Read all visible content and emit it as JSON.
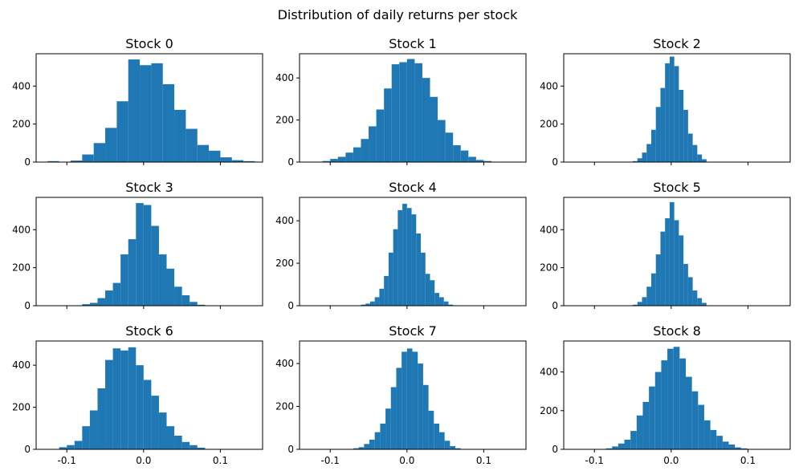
{
  "figure": {
    "title": "Distribution of daily returns per stock",
    "color": "#1f77b4"
  },
  "chart_data": [
    {
      "type": "histogram",
      "title": "Stock 0",
      "xlim": [
        -0.14,
        0.155
      ],
      "ylim": [
        0,
        570
      ],
      "yticks": [
        0,
        200,
        400
      ],
      "xticks": [
        -0.1,
        0.0,
        0.1
      ],
      "show_x_tick_labels": false,
      "bins": [
        [
          -0.125,
          -0.11,
          5
        ],
        [
          -0.11,
          -0.095,
          0
        ],
        [
          -0.095,
          -0.08,
          8
        ],
        [
          -0.08,
          -0.065,
          40
        ],
        [
          -0.065,
          -0.05,
          100
        ],
        [
          -0.05,
          -0.035,
          180
        ],
        [
          -0.035,
          -0.02,
          320
        ],
        [
          -0.02,
          -0.005,
          540
        ],
        [
          -0.005,
          0.01,
          510
        ],
        [
          0.01,
          0.025,
          520
        ],
        [
          0.025,
          0.04,
          410
        ],
        [
          0.04,
          0.055,
          275
        ],
        [
          0.055,
          0.07,
          175
        ],
        [
          0.07,
          0.085,
          90
        ],
        [
          0.085,
          0.1,
          60
        ],
        [
          0.1,
          0.115,
          25
        ],
        [
          0.115,
          0.13,
          10
        ],
        [
          0.13,
          0.145,
          5
        ]
      ]
    },
    {
      "type": "histogram",
      "title": "Stock 1",
      "xlim": [
        -0.14,
        0.155
      ],
      "ylim": [
        0,
        515
      ],
      "yticks": [
        0,
        200,
        400
      ],
      "xticks": [
        -0.1,
        0.0,
        0.1
      ],
      "show_x_tick_labels": false,
      "bins": [
        [
          -0.11,
          -0.1,
          5
        ],
        [
          -0.1,
          -0.09,
          15
        ],
        [
          -0.09,
          -0.08,
          25
        ],
        [
          -0.08,
          -0.07,
          45
        ],
        [
          -0.07,
          -0.06,
          70
        ],
        [
          -0.06,
          -0.05,
          110
        ],
        [
          -0.05,
          -0.04,
          170
        ],
        [
          -0.04,
          -0.03,
          250
        ],
        [
          -0.03,
          -0.02,
          350
        ],
        [
          -0.02,
          -0.01,
          465
        ],
        [
          -0.01,
          0.0,
          475
        ],
        [
          0.0,
          0.01,
          490
        ],
        [
          0.01,
          0.02,
          470
        ],
        [
          0.02,
          0.03,
          400
        ],
        [
          0.03,
          0.04,
          310
        ],
        [
          0.04,
          0.05,
          200
        ],
        [
          0.05,
          0.06,
          140
        ],
        [
          0.06,
          0.07,
          80
        ],
        [
          0.07,
          0.08,
          55
        ],
        [
          0.08,
          0.09,
          25
        ],
        [
          0.09,
          0.1,
          10
        ],
        [
          0.1,
          0.11,
          5
        ]
      ]
    },
    {
      "type": "histogram",
      "title": "Stock 2",
      "xlim": [
        -0.14,
        0.155
      ],
      "ylim": [
        0,
        570
      ],
      "yticks": [
        0,
        200,
        400
      ],
      "xticks": [
        -0.1,
        0.0,
        0.1
      ],
      "show_x_tick_labels": false,
      "bins": [
        [
          -0.05,
          -0.044,
          5
        ],
        [
          -0.044,
          -0.038,
          20
        ],
        [
          -0.038,
          -0.032,
          50
        ],
        [
          -0.032,
          -0.026,
          95
        ],
        [
          -0.026,
          -0.02,
          170
        ],
        [
          -0.02,
          -0.014,
          290
        ],
        [
          -0.014,
          -0.008,
          390
        ],
        [
          -0.008,
          -0.002,
          520
        ],
        [
          -0.002,
          0.004,
          555
        ],
        [
          0.004,
          0.01,
          505
        ],
        [
          0.01,
          0.016,
          380
        ],
        [
          0.016,
          0.022,
          275
        ],
        [
          0.022,
          0.028,
          150
        ],
        [
          0.028,
          0.034,
          90
        ],
        [
          0.034,
          0.04,
          40
        ],
        [
          0.04,
          0.046,
          15
        ]
      ]
    },
    {
      "type": "histogram",
      "title": "Stock 3",
      "xlim": [
        -0.14,
        0.155
      ],
      "ylim": [
        0,
        570
      ],
      "yticks": [
        0,
        200,
        400
      ],
      "xticks": [
        -0.1,
        0.0,
        0.1
      ],
      "show_x_tick_labels": false,
      "bins": [
        [
          -0.08,
          -0.07,
          8
        ],
        [
          -0.07,
          -0.06,
          15
        ],
        [
          -0.06,
          -0.05,
          40
        ],
        [
          -0.05,
          -0.04,
          80
        ],
        [
          -0.04,
          -0.03,
          120
        ],
        [
          -0.03,
          -0.02,
          270
        ],
        [
          -0.02,
          -0.01,
          350
        ],
        [
          -0.01,
          0.0,
          540
        ],
        [
          0.0,
          0.01,
          530
        ],
        [
          0.01,
          0.02,
          420
        ],
        [
          0.02,
          0.03,
          270
        ],
        [
          0.03,
          0.04,
          195
        ],
        [
          0.04,
          0.05,
          100
        ],
        [
          0.05,
          0.06,
          55
        ],
        [
          0.06,
          0.07,
          20
        ],
        [
          0.07,
          0.08,
          5
        ]
      ]
    },
    {
      "type": "histogram",
      "title": "Stock 4",
      "xlim": [
        -0.14,
        0.155
      ],
      "ylim": [
        0,
        510
      ],
      "yticks": [
        0,
        200,
        400
      ],
      "xticks": [
        -0.1,
        0.0,
        0.1
      ],
      "show_x_tick_labels": false,
      "bins": [
        [
          -0.06,
          -0.054,
          5
        ],
        [
          -0.054,
          -0.048,
          10
        ],
        [
          -0.048,
          -0.042,
          20
        ],
        [
          -0.042,
          -0.036,
          40
        ],
        [
          -0.036,
          -0.03,
          80
        ],
        [
          -0.03,
          -0.024,
          140
        ],
        [
          -0.024,
          -0.018,
          250
        ],
        [
          -0.018,
          -0.012,
          360
        ],
        [
          -0.012,
          -0.006,
          450
        ],
        [
          -0.006,
          0.0,
          480
        ],
        [
          0.0,
          0.006,
          460
        ],
        [
          0.006,
          0.012,
          430
        ],
        [
          0.012,
          0.018,
          340
        ],
        [
          0.018,
          0.024,
          250
        ],
        [
          0.024,
          0.03,
          150
        ],
        [
          0.03,
          0.036,
          120
        ],
        [
          0.036,
          0.042,
          60
        ],
        [
          0.042,
          0.048,
          40
        ],
        [
          0.048,
          0.054,
          20
        ],
        [
          0.054,
          0.06,
          5
        ]
      ]
    },
    {
      "type": "histogram",
      "title": "Stock 5",
      "xlim": [
        -0.14,
        0.155
      ],
      "ylim": [
        0,
        570
      ],
      "yticks": [
        0,
        200,
        400
      ],
      "xticks": [
        -0.1,
        0.0,
        0.1
      ],
      "show_x_tick_labels": false,
      "bins": [
        [
          -0.05,
          -0.044,
          5
        ],
        [
          -0.044,
          -0.038,
          20
        ],
        [
          -0.038,
          -0.032,
          45
        ],
        [
          -0.032,
          -0.026,
          100
        ],
        [
          -0.026,
          -0.02,
          170
        ],
        [
          -0.02,
          -0.014,
          270
        ],
        [
          -0.014,
          -0.008,
          390
        ],
        [
          -0.008,
          -0.002,
          460
        ],
        [
          -0.002,
          0.004,
          545
        ],
        [
          0.004,
          0.01,
          450
        ],
        [
          0.01,
          0.016,
          370
        ],
        [
          0.016,
          0.022,
          220
        ],
        [
          0.022,
          0.028,
          150
        ],
        [
          0.028,
          0.034,
          80
        ],
        [
          0.034,
          0.04,
          40
        ],
        [
          0.04,
          0.046,
          15
        ]
      ]
    },
    {
      "type": "histogram",
      "title": "Stock 6",
      "xlim": [
        -0.14,
        0.155
      ],
      "ylim": [
        0,
        515
      ],
      "yticks": [
        0,
        200,
        400
      ],
      "xticks": [
        -0.1,
        0.0,
        0.1
      ],
      "show_x_tick_labels": true,
      "bins": [
        [
          -0.11,
          -0.1,
          10
        ],
        [
          -0.1,
          -0.09,
          20
        ],
        [
          -0.09,
          -0.08,
          40
        ],
        [
          -0.08,
          -0.07,
          110
        ],
        [
          -0.07,
          -0.06,
          185
        ],
        [
          -0.06,
          -0.05,
          290
        ],
        [
          -0.05,
          -0.04,
          425
        ],
        [
          -0.04,
          -0.03,
          480
        ],
        [
          -0.03,
          -0.02,
          470
        ],
        [
          -0.02,
          -0.01,
          485
        ],
        [
          -0.01,
          0.0,
          400
        ],
        [
          0.0,
          0.01,
          330
        ],
        [
          0.01,
          0.02,
          255
        ],
        [
          0.02,
          0.03,
          175
        ],
        [
          0.03,
          0.04,
          110
        ],
        [
          0.04,
          0.05,
          65
        ],
        [
          0.05,
          0.06,
          35
        ],
        [
          0.06,
          0.07,
          20
        ],
        [
          0.07,
          0.08,
          8
        ]
      ],
      "bins_note_range": [
        -0.115,
        0.135
      ]
    },
    {
      "type": "histogram",
      "title": "Stock 7",
      "xlim": [
        -0.14,
        0.155
      ],
      "ylim": [
        0,
        505
      ],
      "yticks": [
        0,
        200,
        400
      ],
      "xticks": [
        -0.1,
        0.0,
        0.1
      ],
      "show_x_tick_labels": true,
      "bins": [
        [
          -0.07,
          -0.063,
          5
        ],
        [
          -0.063,
          -0.056,
          10
        ],
        [
          -0.056,
          -0.049,
          25
        ],
        [
          -0.049,
          -0.042,
          45
        ],
        [
          -0.042,
          -0.035,
          80
        ],
        [
          -0.035,
          -0.028,
          120
        ],
        [
          -0.028,
          -0.021,
          190
        ],
        [
          -0.021,
          -0.014,
          290
        ],
        [
          -0.014,
          -0.007,
          380
        ],
        [
          -0.007,
          0.0,
          455
        ],
        [
          0.0,
          0.007,
          470
        ],
        [
          0.007,
          0.014,
          455
        ],
        [
          0.014,
          0.021,
          400
        ],
        [
          0.021,
          0.028,
          300
        ],
        [
          0.028,
          0.035,
          180
        ],
        [
          0.035,
          0.042,
          120
        ],
        [
          0.042,
          0.049,
          80
        ],
        [
          0.049,
          0.056,
          40
        ],
        [
          0.056,
          0.063,
          15
        ],
        [
          0.063,
          0.07,
          5
        ]
      ]
    },
    {
      "type": "histogram",
      "title": "Stock 8",
      "xlim": [
        -0.14,
        0.155
      ],
      "ylim": [
        0,
        560
      ],
      "yticks": [
        0,
        200,
        400
      ],
      "xticks": [
        -0.1,
        0.0,
        0.1
      ],
      "show_x_tick_labels": true,
      "bins": [
        [
          -0.085,
          -0.077,
          5
        ],
        [
          -0.077,
          -0.069,
          15
        ],
        [
          -0.069,
          -0.061,
          30
        ],
        [
          -0.061,
          -0.053,
          50
        ],
        [
          -0.053,
          -0.045,
          95
        ],
        [
          -0.045,
          -0.037,
          175
        ],
        [
          -0.037,
          -0.029,
          245
        ],
        [
          -0.029,
          -0.021,
          325
        ],
        [
          -0.021,
          -0.013,
          400
        ],
        [
          -0.013,
          -0.005,
          460
        ],
        [
          -0.005,
          0.003,
          520
        ],
        [
          0.003,
          0.011,
          530
        ],
        [
          0.011,
          0.019,
          470
        ],
        [
          0.019,
          0.027,
          375
        ],
        [
          0.027,
          0.035,
          300
        ],
        [
          0.035,
          0.043,
          230
        ],
        [
          0.043,
          0.051,
          150
        ],
        [
          0.051,
          0.059,
          100
        ],
        [
          0.059,
          0.067,
          70
        ],
        [
          0.067,
          0.075,
          40
        ],
        [
          0.075,
          0.083,
          25
        ],
        [
          0.083,
          0.091,
          10
        ],
        [
          0.091,
          0.099,
          5
        ]
      ]
    }
  ]
}
